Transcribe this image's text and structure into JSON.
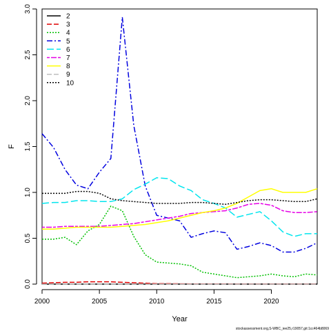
{
  "chart_data": {
    "type": "line",
    "xlabel": "Year",
    "ylabel": "F",
    "xlim": [
      2000,
      2024
    ],
    "ylim": [
      0,
      3.0
    ],
    "xticks": [
      2000,
      2005,
      2010,
      2015,
      2020
    ],
    "yticks": [
      "0.0",
      "0.5",
      "1.0",
      "1.5",
      "2.0",
      "2.5",
      "3.0"
    ],
    "grid": false,
    "legend_position": "top-left",
    "x": [
      2000,
      2001,
      2002,
      2003,
      2004,
      2005,
      2006,
      2007,
      2008,
      2009,
      2010,
      2011,
      2012,
      2013,
      2014,
      2015,
      2016,
      2017,
      2018,
      2019,
      2020,
      2021,
      2022,
      2023,
      2024
    ],
    "series": [
      {
        "name": "2",
        "color": "#000000",
        "dash": "solid",
        "values": [
          0.0,
          0.0,
          0.0,
          0.0,
          0.0,
          0.0,
          0.0,
          0.0,
          0.0,
          0.0,
          0.0,
          0.0,
          0.0,
          0.0,
          0.0,
          0.0,
          0.0,
          0.0,
          0.0,
          0.0,
          0.0,
          0.0,
          0.0,
          0.0,
          0.0
        ]
      },
      {
        "name": "3",
        "color": "#df0000",
        "dash": "long",
        "values": [
          0.01,
          0.015,
          0.02,
          0.02,
          0.025,
          0.025,
          0.025,
          0.02,
          0.015,
          0.01,
          0.005,
          0.005,
          0.003,
          0.002,
          0.002,
          0.002,
          0.002,
          0.001,
          0.001,
          0.001,
          0.001,
          0.001,
          0.001,
          0.001,
          0.001
        ]
      },
      {
        "name": "4",
        "color": "#00c000",
        "dash": "dotted",
        "values": [
          0.49,
          0.49,
          0.51,
          0.43,
          0.58,
          0.65,
          0.85,
          0.8,
          0.52,
          0.32,
          0.24,
          0.23,
          0.22,
          0.2,
          0.13,
          0.11,
          0.09,
          0.07,
          0.08,
          0.09,
          0.11,
          0.09,
          0.08,
          0.11,
          0.1
        ]
      },
      {
        "name": "5",
        "color": "#0000df",
        "dash": "dashdot",
        "values": [
          1.64,
          1.49,
          1.25,
          1.08,
          1.04,
          1.22,
          1.37,
          2.91,
          1.73,
          1.07,
          0.75,
          0.72,
          0.69,
          0.51,
          0.55,
          0.58,
          0.56,
          0.38,
          0.41,
          0.45,
          0.42,
          0.35,
          0.35,
          0.39,
          0.45
        ]
      },
      {
        "name": "6",
        "color": "#00e5ee",
        "dash": "longdash",
        "values": [
          0.88,
          0.89,
          0.89,
          0.91,
          0.91,
          0.9,
          0.9,
          0.93,
          1.03,
          1.09,
          1.16,
          1.15,
          1.07,
          1.02,
          0.92,
          0.88,
          0.83,
          0.73,
          0.76,
          0.79,
          0.69,
          0.57,
          0.52,
          0.55,
          0.55
        ]
      },
      {
        "name": "7",
        "color": "#e600e6",
        "dash": "twodash",
        "values": [
          0.62,
          0.62,
          0.63,
          0.63,
          0.63,
          0.63,
          0.64,
          0.65,
          0.66,
          0.68,
          0.7,
          0.72,
          0.74,
          0.77,
          0.78,
          0.79,
          0.8,
          0.83,
          0.87,
          0.88,
          0.86,
          0.8,
          0.78,
          0.78,
          0.79
        ]
      },
      {
        "name": "8",
        "color": "#ffff00",
        "dash": "solid",
        "values": [
          0.6,
          0.6,
          0.61,
          0.62,
          0.62,
          0.62,
          0.62,
          0.63,
          0.64,
          0.65,
          0.67,
          0.69,
          0.72,
          0.75,
          0.78,
          0.8,
          0.83,
          0.88,
          0.95,
          1.02,
          1.04,
          1.0,
          1.0,
          1.0,
          1.04
        ]
      },
      {
        "name": "9",
        "color": "#bebebe",
        "dash": "long",
        "values": [
          0.0,
          0.0,
          0.0,
          0.0,
          0.0,
          0.0,
          0.0,
          0.0,
          0.0,
          0.0,
          0.0,
          0.0,
          0.0,
          0.0,
          0.0,
          0.0,
          0.0,
          0.0,
          0.0,
          0.0,
          0.0,
          0.0,
          0.0,
          0.0,
          0.0
        ]
      },
      {
        "name": "10",
        "color": "#000000",
        "dash": "dotted",
        "values": [
          0.99,
          0.99,
          0.99,
          1.01,
          1.01,
          0.99,
          0.93,
          0.91,
          0.9,
          0.89,
          0.88,
          0.88,
          0.88,
          0.89,
          0.89,
          0.88,
          0.87,
          0.89,
          0.91,
          0.92,
          0.92,
          0.91,
          0.9,
          0.9,
          0.93
        ]
      }
    ]
  },
  "footer": {
    "credit": "stockassessment.org,S-WBC_iee25,r19057,git:1cc464b8069"
  }
}
